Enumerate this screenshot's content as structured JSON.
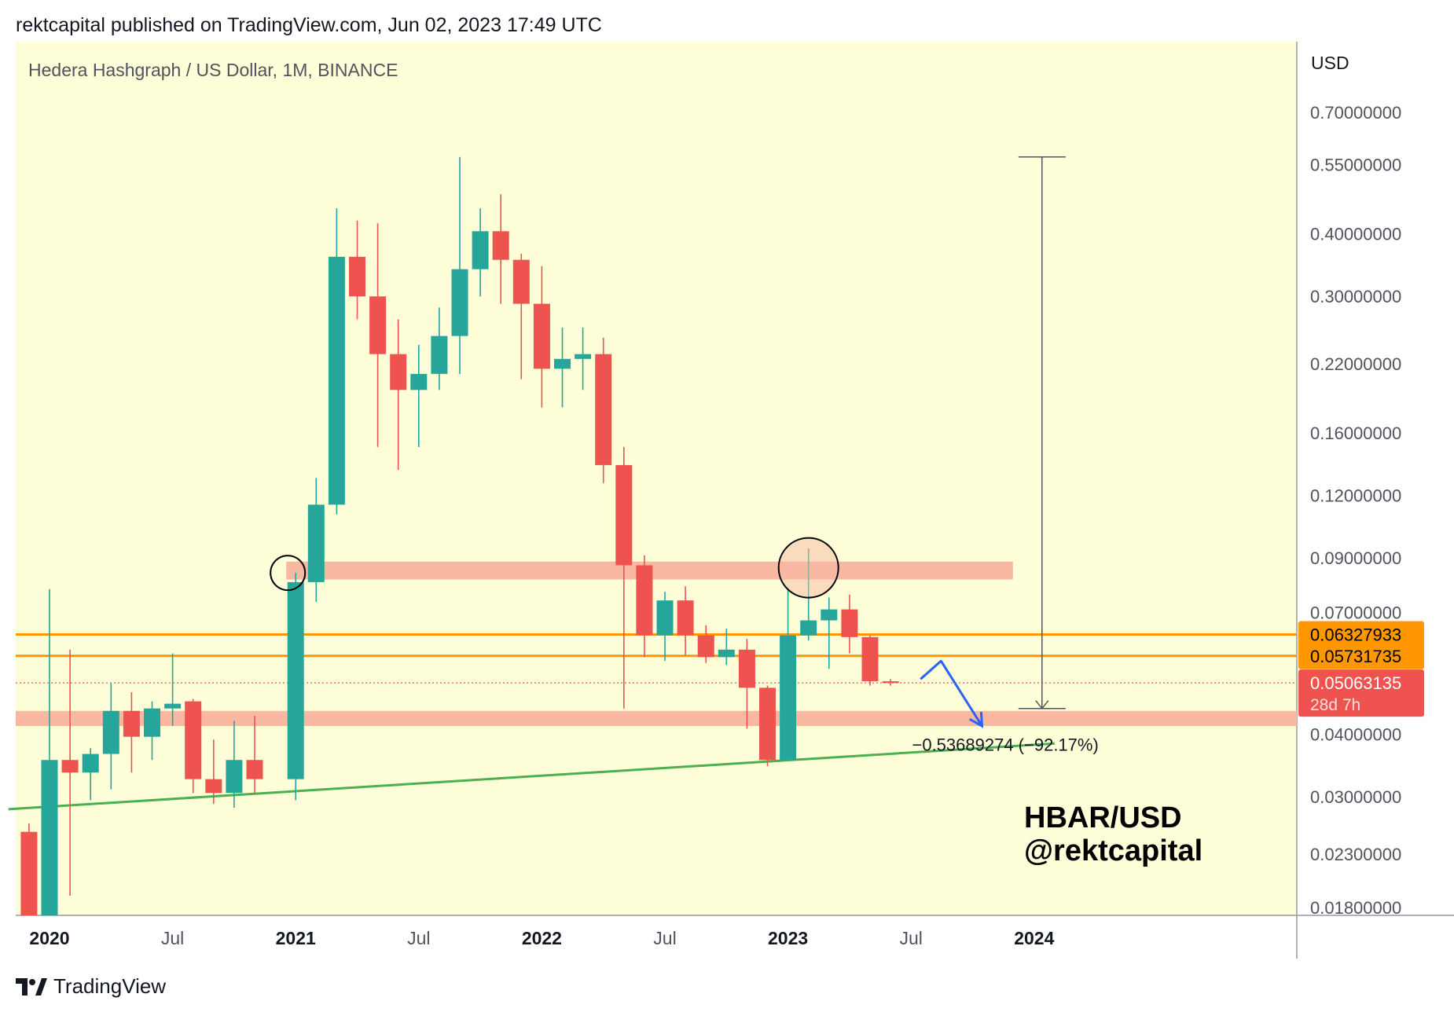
{
  "header": {
    "published": "rektcapital published on TradingView.com, Jun 02, 2023 17:49 UTC"
  },
  "footer": {
    "brand": "TradingView"
  },
  "icons": {
    "footer_logo": "tradingview-logo-icon"
  },
  "colors": {
    "background": "#feffd8",
    "up": "#26a69a",
    "down": "#ef5350",
    "zone": "#f8b8a2",
    "support_line": "#4caf50",
    "level_line": "#ff9800",
    "projection": "#2962ff",
    "current_price": "#ef5350"
  },
  "chart_data": {
    "type": "candlestick",
    "title": "Hedera Hashgraph / US Dollar, 1M, BINANCE",
    "watermark": [
      "HBAR/USD",
      "@rektcapital"
    ],
    "y_unit": "USD",
    "y_scale": "log",
    "y_ticks": [
      {
        "value": 0.7,
        "label": "0.70000000"
      },
      {
        "value": 0.55,
        "label": "0.55000000"
      },
      {
        "value": 0.4,
        "label": "0.40000000"
      },
      {
        "value": 0.3,
        "label": "0.30000000"
      },
      {
        "value": 0.22,
        "label": "0.22000000"
      },
      {
        "value": 0.16,
        "label": "0.16000000"
      },
      {
        "value": 0.12,
        "label": "0.12000000"
      },
      {
        "value": 0.09,
        "label": "0.09000000"
      },
      {
        "value": 0.07,
        "label": "0.07000000"
      },
      {
        "value": 0.04,
        "label": "0.04000000"
      },
      {
        "value": 0.03,
        "label": "0.03000000"
      },
      {
        "value": 0.023,
        "label": "0.02300000"
      },
      {
        "value": 0.018,
        "label": "0.01800000"
      }
    ],
    "x_ticks": [
      {
        "month": "2020-01",
        "label": "2020",
        "bold": true
      },
      {
        "month": "2020-07",
        "label": "Jul",
        "bold": false
      },
      {
        "month": "2021-01",
        "label": "2021",
        "bold": true
      },
      {
        "month": "2021-07",
        "label": "Jul",
        "bold": false
      },
      {
        "month": "2022-01",
        "label": "2022",
        "bold": true
      },
      {
        "month": "2022-07",
        "label": "Jul",
        "bold": false
      },
      {
        "month": "2023-01",
        "label": "2023",
        "bold": true
      },
      {
        "month": "2023-07",
        "label": "Jul",
        "bold": false
      },
      {
        "month": "2024-01",
        "label": "2024",
        "bold": true
      }
    ],
    "candles": [
      {
        "month": "2019-12",
        "open": 0.0255,
        "high": 0.0265,
        "low": 0.015,
        "close": 0.015
      },
      {
        "month": "2020-01",
        "open": 0.015,
        "high": 0.078,
        "low": 0.015,
        "close": 0.0355
      },
      {
        "month": "2020-02",
        "open": 0.0355,
        "high": 0.059,
        "low": 0.019,
        "close": 0.0335
      },
      {
        "month": "2020-03",
        "open": 0.0335,
        "high": 0.0375,
        "low": 0.0295,
        "close": 0.0365
      },
      {
        "month": "2020-04",
        "open": 0.0365,
        "high": 0.0505,
        "low": 0.031,
        "close": 0.0445
      },
      {
        "month": "2020-05",
        "open": 0.0445,
        "high": 0.0485,
        "low": 0.0335,
        "close": 0.0395
      },
      {
        "month": "2020-06",
        "open": 0.0395,
        "high": 0.0465,
        "low": 0.0355,
        "close": 0.045
      },
      {
        "month": "2020-07",
        "open": 0.045,
        "high": 0.058,
        "low": 0.0415,
        "close": 0.046
      },
      {
        "month": "2020-08",
        "open": 0.0465,
        "high": 0.047,
        "low": 0.0305,
        "close": 0.0325
      },
      {
        "month": "2020-09",
        "open": 0.0325,
        "high": 0.039,
        "low": 0.029,
        "close": 0.0305
      },
      {
        "month": "2020-10",
        "open": 0.0305,
        "high": 0.0425,
        "low": 0.0285,
        "close": 0.0355
      },
      {
        "month": "2020-11",
        "open": 0.0355,
        "high": 0.0435,
        "low": 0.0305,
        "close": 0.0325
      },
      {
        "month": "2021-01",
        "open": 0.0325,
        "high": 0.084,
        "low": 0.0295,
        "close": 0.0805
      },
      {
        "month": "2021-02",
        "open": 0.0805,
        "high": 0.13,
        "low": 0.0735,
        "close": 0.115
      },
      {
        "month": "2021-03",
        "open": 0.115,
        "high": 0.45,
        "low": 0.11,
        "close": 0.36
      },
      {
        "month": "2021-04",
        "open": 0.36,
        "high": 0.425,
        "low": 0.27,
        "close": 0.3
      },
      {
        "month": "2021-05",
        "open": 0.3,
        "high": 0.42,
        "low": 0.15,
        "close": 0.23
      },
      {
        "month": "2021-06",
        "open": 0.23,
        "high": 0.27,
        "low": 0.135,
        "close": 0.195
      },
      {
        "month": "2021-07",
        "open": 0.195,
        "high": 0.24,
        "low": 0.15,
        "close": 0.21
      },
      {
        "month": "2021-08",
        "open": 0.21,
        "high": 0.285,
        "low": 0.195,
        "close": 0.25
      },
      {
        "month": "2021-09",
        "open": 0.25,
        "high": 0.57,
        "low": 0.21,
        "close": 0.34
      },
      {
        "month": "2021-10",
        "open": 0.34,
        "high": 0.45,
        "low": 0.3,
        "close": 0.405
      },
      {
        "month": "2021-11",
        "open": 0.405,
        "high": 0.48,
        "low": 0.29,
        "close": 0.355
      },
      {
        "month": "2021-12",
        "open": 0.355,
        "high": 0.365,
        "low": 0.205,
        "close": 0.29
      },
      {
        "month": "2022-01",
        "open": 0.29,
        "high": 0.345,
        "low": 0.18,
        "close": 0.215
      },
      {
        "month": "2022-02",
        "open": 0.215,
        "high": 0.26,
        "low": 0.18,
        "close": 0.225
      },
      {
        "month": "2022-03",
        "open": 0.225,
        "high": 0.26,
        "low": 0.195,
        "close": 0.23
      },
      {
        "month": "2022-04",
        "open": 0.23,
        "high": 0.248,
        "low": 0.127,
        "close": 0.138
      },
      {
        "month": "2022-05",
        "open": 0.138,
        "high": 0.15,
        "low": 0.045,
        "close": 0.087
      },
      {
        "month": "2022-06",
        "open": 0.087,
        "high": 0.091,
        "low": 0.057,
        "close": 0.063
      },
      {
        "month": "2022-07",
        "open": 0.063,
        "high": 0.077,
        "low": 0.056,
        "close": 0.074
      },
      {
        "month": "2022-08",
        "open": 0.074,
        "high": 0.079,
        "low": 0.0575,
        "close": 0.063
      },
      {
        "month": "2022-09",
        "open": 0.063,
        "high": 0.066,
        "low": 0.0555,
        "close": 0.057
      },
      {
        "month": "2022-10",
        "open": 0.057,
        "high": 0.065,
        "low": 0.055,
        "close": 0.059
      },
      {
        "month": "2022-11",
        "open": 0.059,
        "high": 0.062,
        "low": 0.041,
        "close": 0.0495
      },
      {
        "month": "2022-12",
        "open": 0.0495,
        "high": 0.05,
        "low": 0.0345,
        "close": 0.0355
      },
      {
        "month": "2023-01",
        "open": 0.0355,
        "high": 0.078,
        "low": 0.0355,
        "close": 0.063
      },
      {
        "month": "2023-02",
        "open": 0.063,
        "high": 0.094,
        "low": 0.0615,
        "close": 0.0675
      },
      {
        "month": "2023-03",
        "open": 0.0675,
        "high": 0.075,
        "low": 0.054,
        "close": 0.071
      },
      {
        "month": "2023-04",
        "open": 0.071,
        "high": 0.076,
        "low": 0.058,
        "close": 0.0625
      },
      {
        "month": "2023-05",
        "open": 0.0625,
        "high": 0.063,
        "low": 0.05,
        "close": 0.051
      },
      {
        "month": "2023-06",
        "open": 0.051,
        "high": 0.0515,
        "low": 0.05,
        "close": 0.0506
      }
    ],
    "resistance_zone": {
      "low": 0.0815,
      "high": 0.0885,
      "from": "2021-01",
      "to": "2024-01"
    },
    "support_zone": {
      "low": 0.0415,
      "high": 0.0445
    },
    "trendline": {
      "from": {
        "month": "2019-11",
        "value": 0.0283
      },
      "to": {
        "month": "2024-02",
        "value": 0.0383
      }
    },
    "levels": [
      {
        "value": 0.06327933,
        "label": "0.06327933"
      },
      {
        "value": 0.05731735,
        "label": "0.05731735"
      }
    ],
    "current_price": {
      "value": 0.05063135,
      "label": "0.05063135",
      "countdown": "28d 7h"
    },
    "measure": {
      "month": "2024-01",
      "from": 0.57,
      "to": 0.045,
      "label": "−0.53689274 (−92.17%)"
    },
    "projection": [
      {
        "month": "2023-07",
        "value": 0.0515
      },
      {
        "month": "2023-08",
        "value": 0.056
      },
      {
        "month": "2023-10",
        "value": 0.0415
      }
    ],
    "circles": [
      {
        "month": "2021-01",
        "value": 0.084
      },
      {
        "month": "2023-02",
        "value": 0.086
      }
    ]
  }
}
